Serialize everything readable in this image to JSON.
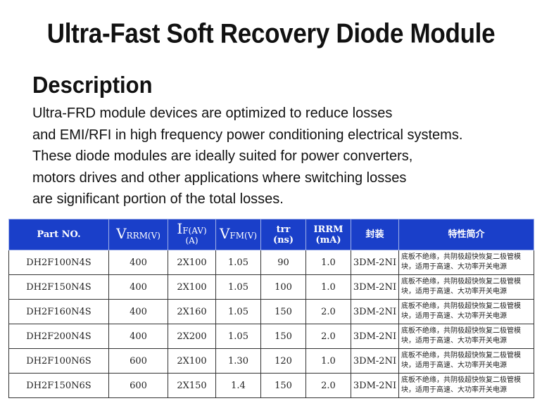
{
  "title": "Ultra-Fast Soft Recovery Diode Module",
  "description": {
    "heading": "Description",
    "lines": [
      "Ultra-FRD module  devices are  optimized to reduce losses",
      "and EMI/RFI in high frequency power conditioning electrical systems.",
      "These diode modules are ideally suited for power converters,",
      "motors drives and other applications where switching losses",
      "are significant portion of the total losses."
    ]
  },
  "table": {
    "headers": {
      "part_no": "Part NO.",
      "vrrm_main": "V",
      "vrrm_sub": "RRM",
      "vrrm_unit": "(V)",
      "if_main": "I",
      "if_sub": "F(AV)",
      "if_unit": "(A)",
      "vfm_main": "V",
      "vfm_sub": "FM",
      "vfm_unit": "(V)",
      "trr": "trr",
      "trr_unit": "(ns)",
      "irrm": "IRRM",
      "irrm_unit": "(mA)",
      "package": "封装",
      "features": "特性简介"
    },
    "rows": [
      {
        "part": "DH2F100N4S",
        "vrrm": "400",
        "if": "2X100",
        "vfm": "1.05",
        "trr": "90",
        "irrm": "1.0",
        "package": "3DM-2NI",
        "desc_line1": "底板不绝缘，共阴极超快恢复二极管模",
        "desc_line2": "块，适用于高速、大功率开关电源"
      },
      {
        "part": "DH2F150N4S",
        "vrrm": "400",
        "if": "2X100",
        "vfm": "1.05",
        "trr": "100",
        "irrm": "1.0",
        "package": "3DM-2NI",
        "desc_line1": "底板不绝缘，共阴极超快恢复二极管模",
        "desc_line2": "块，适用于高速、大功率开关电源"
      },
      {
        "part": "DH2F160N4S",
        "vrrm": "400",
        "if": "2X160",
        "vfm": "1.05",
        "trr": "150",
        "irrm": "2.0",
        "package": "3DM-2NI",
        "desc_line1": "底板不绝缘，共阴极超快恢复二极管模",
        "desc_line2": "块，适用于高速、大功率开关电源"
      },
      {
        "part": "DH2F200N4S",
        "vrrm": "400",
        "if": "2X200",
        "vfm": "1.05",
        "trr": "150",
        "irrm": "2.0",
        "package": "3DM-2NI",
        "desc_line1": "底板不绝缘，共阴极超快恢复二极管模",
        "desc_line2": "块，适用于高速、大功率开关电源"
      },
      {
        "part": "DH2F100N6S",
        "vrrm": "600",
        "if": "2X100",
        "vfm": "1.30",
        "trr": "120",
        "irrm": "1.0",
        "package": "3DM-2NI",
        "desc_line1": "底板不绝缘，共阴极超快恢复二极管模",
        "desc_line2": "块，适用于高速、大功率开关电源"
      },
      {
        "part": "DH2F150N6S",
        "vrrm": "600",
        "if": "2X150",
        "vfm": "1.4",
        "trr": "150",
        "irrm": "2.0",
        "package": "3DM-2NI",
        "desc_line1": "底板不绝缘，共阴极超快恢复二极管模",
        "desc_line2": "块，适用于高速、大功率开关电源"
      }
    ]
  },
  "colors": {
    "header_bg": "#1a3fc9",
    "header_text": "#ffffff"
  }
}
